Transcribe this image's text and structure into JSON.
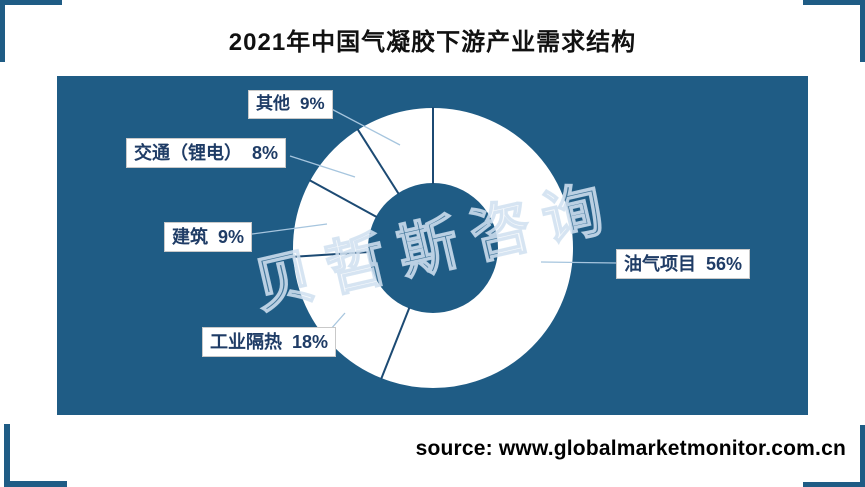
{
  "title": "2021年中国气凝胶下游产业需求结构",
  "source_text": "source: www.globalmarketmonitor.com.cn",
  "watermark": "贝哲斯咨询",
  "colors": {
    "panel_bg": "#1f5c85",
    "bracket": "#1f5c85",
    "ring": "#ffffff",
    "divider": "#1c4a73",
    "leader": "#a6c5de",
    "label_text": "#1f3c66",
    "title_text": "#111111"
  },
  "chart_data": {
    "type": "pie",
    "donut": true,
    "title": "2021年中国气凝胶下游产业需求结构",
    "unit": "%",
    "start_angle_deg": 0,
    "direction": "clockwise",
    "legend_position": "callout-labels",
    "slices": [
      {
        "label": "油气项目",
        "value": 56,
        "pct_text": "56%"
      },
      {
        "label": "工业隔热",
        "value": 18,
        "pct_text": "18%"
      },
      {
        "label": "建筑",
        "value": 9,
        "pct_text": "9%"
      },
      {
        "label": "交通（锂电）",
        "value": 8,
        "pct_text": "8%"
      },
      {
        "label": "其他",
        "value": 9,
        "pct_text": "9%"
      }
    ]
  }
}
